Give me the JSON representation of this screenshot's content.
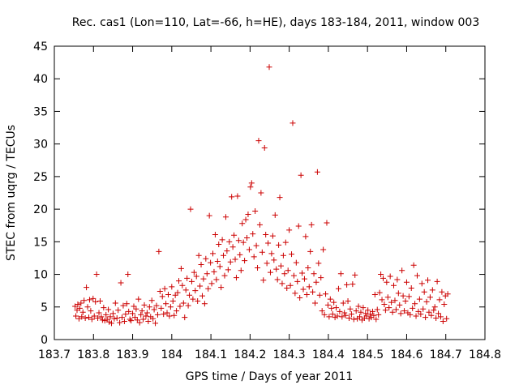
{
  "chart_data": {
    "type": "scatter",
    "title": "Rec. cas1 (Lon=110, Lat=-66, h=HE), days 183-184, 2011, window 003",
    "xlabel": "GPS time / Days of year 2011",
    "ylabel": "STEC from uqrg / TECUs",
    "xlim": [
      183.7,
      184.8
    ],
    "ylim": [
      0,
      45
    ],
    "x_ticks": [
      183.7,
      183.8,
      183.9,
      184.0,
      184.1,
      184.2,
      184.3,
      184.4,
      184.5,
      184.6,
      184.7,
      184.8
    ],
    "x_tick_labels": [
      "183.7",
      "183.8",
      "183.9",
      "184",
      "184.1",
      "184.2",
      "184.3",
      "184.4",
      "184.5",
      "184.6",
      "184.7",
      "184.8"
    ],
    "y_ticks": [
      0,
      5,
      10,
      15,
      20,
      25,
      30,
      35,
      40,
      45
    ],
    "y_tick_labels": [
      "0",
      "5",
      "10",
      "15",
      "20",
      "25",
      "30",
      "35",
      "40",
      "45"
    ],
    "grid": false,
    "marker": "+",
    "color": "#cc0000",
    "points": [
      [
        183.753,
        5.1
      ],
      [
        183.755,
        3.6
      ],
      [
        183.758,
        4.5
      ],
      [
        183.76,
        5.4
      ],
      [
        183.763,
        3.2
      ],
      [
        183.765,
        4.8
      ],
      [
        183.768,
        5.6
      ],
      [
        183.77,
        3.5
      ],
      [
        183.773,
        4.2
      ],
      [
        183.776,
        6.0
      ],
      [
        183.779,
        3.3
      ],
      [
        183.782,
        8.0
      ],
      [
        183.785,
        5.0
      ],
      [
        183.788,
        3.4
      ],
      [
        183.79,
        6.1
      ],
      [
        183.793,
        4.4
      ],
      [
        183.796,
        3.1
      ],
      [
        183.799,
        6.3
      ],
      [
        183.802,
        3.6
      ],
      [
        183.805,
        5.8
      ],
      [
        183.808,
        10.0
      ],
      [
        183.811,
        3.3
      ],
      [
        183.814,
        4.1
      ],
      [
        183.817,
        5.9
      ],
      [
        183.82,
        3.5
      ],
      [
        183.823,
        3.0
      ],
      [
        183.826,
        4.9
      ],
      [
        183.829,
        2.9
      ],
      [
        183.832,
        3.8
      ],
      [
        183.835,
        3.1
      ],
      [
        183.838,
        4.6
      ],
      [
        183.84,
        2.7
      ],
      [
        183.843,
        3.5
      ],
      [
        183.846,
        2.5
      ],
      [
        183.85,
        4.0
      ],
      [
        183.853,
        3.2
      ],
      [
        183.856,
        5.6
      ],
      [
        183.86,
        3.3
      ],
      [
        183.863,
        4.5
      ],
      [
        183.867,
        2.6
      ],
      [
        183.87,
        8.7
      ],
      [
        183.873,
        3.4
      ],
      [
        183.876,
        5.2
      ],
      [
        183.879,
        2.8
      ],
      [
        183.882,
        3.9
      ],
      [
        183.885,
        5.5
      ],
      [
        183.888,
        10.0
      ],
      [
        183.89,
        4.3
      ],
      [
        183.893,
        3.1
      ],
      [
        183.896,
        2.9
      ],
      [
        183.9,
        4.0
      ],
      [
        183.903,
        5.1
      ],
      [
        183.906,
        3.4
      ],
      [
        183.909,
        4.7
      ],
      [
        183.912,
        3.0
      ],
      [
        183.915,
        6.2
      ],
      [
        183.918,
        2.6
      ],
      [
        183.921,
        3.8
      ],
      [
        183.924,
        4.4
      ],
      [
        183.927,
        3.1
      ],
      [
        183.93,
        5.3
      ],
      [
        183.934,
        3.6
      ],
      [
        183.937,
        4.1
      ],
      [
        183.94,
        2.8
      ],
      [
        183.943,
        5.0
      ],
      [
        183.946,
        3.5
      ],
      [
        183.949,
        6.0
      ],
      [
        183.952,
        3.2
      ],
      [
        183.955,
        4.6
      ],
      [
        183.958,
        2.5
      ],
      [
        183.961,
        5.2
      ],
      [
        183.964,
        3.8
      ],
      [
        183.967,
        13.5
      ],
      [
        183.97,
        7.4
      ],
      [
        183.973,
        4.8
      ],
      [
        183.976,
        6.6
      ],
      [
        183.979,
        3.9
      ],
      [
        183.982,
        7.8
      ],
      [
        183.985,
        5.5
      ],
      [
        183.988,
        4.1
      ],
      [
        183.991,
        6.9
      ],
      [
        183.994,
        3.6
      ],
      [
        183.997,
        5.0
      ],
      [
        184.0,
        8.1
      ],
      [
        184.003,
        5.9
      ],
      [
        184.006,
        3.7
      ],
      [
        184.009,
        6.8
      ],
      [
        184.012,
        4.4
      ],
      [
        184.015,
        7.2
      ],
      [
        184.018,
        9.0
      ],
      [
        184.021,
        5.1
      ],
      [
        184.024,
        10.9
      ],
      [
        184.027,
        8.3
      ],
      [
        184.03,
        5.6
      ],
      [
        184.033,
        3.4
      ],
      [
        184.036,
        7.6
      ],
      [
        184.039,
        9.4
      ],
      [
        184.042,
        5.2
      ],
      [
        184.045,
        6.8
      ],
      [
        184.048,
        20.0
      ],
      [
        184.051,
        8.9
      ],
      [
        184.054,
        6.2
      ],
      [
        184.057,
        10.3
      ],
      [
        184.06,
        7.5
      ],
      [
        184.063,
        9.7
      ],
      [
        184.066,
        5.9
      ],
      [
        184.069,
        12.9
      ],
      [
        184.072,
        8.2
      ],
      [
        184.075,
        11.5
      ],
      [
        184.078,
        6.7
      ],
      [
        184.081,
        9.3
      ],
      [
        184.084,
        5.5
      ],
      [
        184.087,
        12.4
      ],
      [
        184.09,
        10.1
      ],
      [
        184.093,
        7.8
      ],
      [
        184.096,
        19.0
      ],
      [
        184.099,
        11.8
      ],
      [
        184.102,
        8.6
      ],
      [
        184.105,
        13.2
      ],
      [
        184.108,
        10.4
      ],
      [
        184.111,
        16.1
      ],
      [
        184.114,
        9.2
      ],
      [
        184.117,
        12.0
      ],
      [
        184.12,
        14.6
      ],
      [
        184.123,
        11.2
      ],
      [
        184.126,
        8.0
      ],
      [
        184.129,
        15.3
      ],
      [
        184.132,
        12.9
      ],
      [
        184.135,
        9.8
      ],
      [
        184.138,
        18.8
      ],
      [
        184.141,
        13.6
      ],
      [
        184.144,
        10.7
      ],
      [
        184.147,
        15.0
      ],
      [
        184.15,
        11.9
      ],
      [
        184.153,
        21.9
      ],
      [
        184.156,
        14.2
      ],
      [
        184.159,
        16.0
      ],
      [
        184.162,
        12.3
      ],
      [
        184.165,
        9.5
      ],
      [
        184.168,
        22.0
      ],
      [
        184.171,
        15.2
      ],
      [
        184.174,
        13.0
      ],
      [
        184.177,
        10.6
      ],
      [
        184.18,
        17.8
      ],
      [
        184.183,
        14.9
      ],
      [
        184.186,
        12.1
      ],
      [
        184.189,
        18.4
      ],
      [
        184.192,
        15.6
      ],
      [
        184.195,
        19.2
      ],
      [
        184.198,
        13.8
      ],
      [
        184.201,
        23.4
      ],
      [
        184.204,
        24.0
      ],
      [
        184.207,
        16.2
      ],
      [
        184.21,
        12.7
      ],
      [
        184.213,
        19.7
      ],
      [
        184.216,
        14.4
      ],
      [
        184.219,
        11.0
      ],
      [
        184.222,
        30.5
      ],
      [
        184.225,
        17.6
      ],
      [
        184.228,
        22.5
      ],
      [
        184.231,
        13.4
      ],
      [
        184.234,
        9.1
      ],
      [
        184.237,
        29.4
      ],
      [
        184.24,
        16.1
      ],
      [
        184.243,
        11.7
      ],
      [
        184.246,
        14.8
      ],
      [
        184.249,
        41.8
      ],
      [
        184.252,
        10.3
      ],
      [
        184.255,
        13.2
      ],
      [
        184.258,
        15.9
      ],
      [
        184.261,
        12.2
      ],
      [
        184.264,
        19.1
      ],
      [
        184.267,
        10.8
      ],
      [
        184.27,
        9.2
      ],
      [
        184.273,
        14.5
      ],
      [
        184.276,
        21.8
      ],
      [
        184.279,
        11.3
      ],
      [
        184.282,
        8.6
      ],
      [
        184.285,
        12.9
      ],
      [
        184.288,
        10.1
      ],
      [
        184.291,
        14.9
      ],
      [
        184.294,
        7.9
      ],
      [
        184.297,
        10.6
      ],
      [
        184.3,
        16.8
      ],
      [
        184.303,
        8.3
      ],
      [
        184.306,
        13.1
      ],
      [
        184.309,
        33.2
      ],
      [
        184.312,
        9.8
      ],
      [
        184.315,
        7.1
      ],
      [
        184.318,
        11.8
      ],
      [
        184.321,
        8.9
      ],
      [
        184.324,
        17.4
      ],
      [
        184.327,
        6.4
      ],
      [
        184.33,
        25.2
      ],
      [
        184.333,
        10.2
      ],
      [
        184.336,
        7.7
      ],
      [
        184.339,
        9.3
      ],
      [
        184.342,
        15.8
      ],
      [
        184.345,
        6.9
      ],
      [
        184.348,
        11.0
      ],
      [
        184.351,
        8.1
      ],
      [
        184.354,
        13.5
      ],
      [
        184.357,
        17.6
      ],
      [
        184.36,
        7.3
      ],
      [
        184.363,
        10.1
      ],
      [
        184.366,
        5.6
      ],
      [
        184.369,
        8.8
      ],
      [
        184.372,
        25.7
      ],
      [
        184.375,
        11.7
      ],
      [
        184.378,
        6.8
      ],
      [
        184.381,
        9.5
      ],
      [
        184.384,
        4.4
      ],
      [
        184.387,
        13.8
      ],
      [
        184.39,
        3.8
      ],
      [
        184.393,
        7.0
      ],
      [
        184.396,
        17.9
      ],
      [
        184.399,
        5.3
      ],
      [
        184.402,
        3.5
      ],
      [
        184.405,
        6.2
      ],
      [
        184.408,
        4.8
      ],
      [
        184.411,
        3.9
      ],
      [
        184.414,
        5.7
      ],
      [
        184.417,
        3.4
      ],
      [
        184.42,
        4.9
      ],
      [
        184.423,
        3.6
      ],
      [
        184.426,
        7.8
      ],
      [
        184.429,
        4.3
      ],
      [
        184.432,
        10.1
      ],
      [
        184.435,
        3.5
      ],
      [
        184.438,
        5.6
      ],
      [
        184.441,
        4.1
      ],
      [
        184.444,
        3.7
      ],
      [
        184.447,
        8.4
      ],
      [
        184.45,
        5.9
      ],
      [
        184.453,
        3.3
      ],
      [
        184.456,
        4.7
      ],
      [
        184.459,
        3.9
      ],
      [
        184.462,
        8.5
      ],
      [
        184.465,
        3.1
      ],
      [
        184.468,
        9.9
      ],
      [
        184.471,
        4.4
      ],
      [
        184.474,
        3.2
      ],
      [
        184.477,
        5.1
      ],
      [
        184.48,
        3.5
      ],
      [
        184.483,
        4.2
      ],
      [
        184.486,
        3.0
      ],
      [
        184.489,
        4.9
      ],
      [
        184.492,
        3.3
      ],
      [
        184.495,
        4.0
      ],
      [
        184.498,
        3.6
      ],
      [
        184.501,
        4.5
      ],
      [
        184.504,
        3.2
      ],
      [
        184.507,
        3.9
      ],
      [
        184.51,
        3.4
      ],
      [
        184.513,
        4.3
      ],
      [
        184.516,
        3.7
      ],
      [
        184.519,
        6.9
      ],
      [
        184.522,
        3.1
      ],
      [
        184.525,
        4.6
      ],
      [
        184.528,
        3.8
      ],
      [
        184.531,
        7.2
      ],
      [
        184.534,
        10.0
      ],
      [
        184.537,
        6.1
      ],
      [
        184.54,
        9.4
      ],
      [
        184.543,
        5.4
      ],
      [
        184.546,
        4.5
      ],
      [
        184.549,
        8.8
      ],
      [
        184.552,
        6.5
      ],
      [
        184.555,
        4.9
      ],
      [
        184.558,
        9.7
      ],
      [
        184.561,
        5.7
      ],
      [
        184.564,
        4.2
      ],
      [
        184.567,
        8.3
      ],
      [
        184.57,
        6.0
      ],
      [
        184.573,
        4.6
      ],
      [
        184.576,
        9.2
      ],
      [
        184.579,
        7.1
      ],
      [
        184.582,
        5.3
      ],
      [
        184.585,
        4.0
      ],
      [
        184.588,
        10.6
      ],
      [
        184.591,
        6.7
      ],
      [
        184.594,
        4.4
      ],
      [
        184.597,
        5.9
      ],
      [
        184.6,
        8.8
      ],
      [
        184.603,
        4.1
      ],
      [
        184.606,
        6.6
      ],
      [
        184.609,
        3.8
      ],
      [
        184.612,
        7.9
      ],
      [
        184.615,
        4.8
      ],
      [
        184.618,
        11.4
      ],
      [
        184.621,
        5.5
      ],
      [
        184.624,
        3.6
      ],
      [
        184.627,
        9.8
      ],
      [
        184.63,
        4.3
      ],
      [
        184.633,
        6.2
      ],
      [
        184.636,
        3.9
      ],
      [
        184.639,
        8.6
      ],
      [
        184.642,
        4.7
      ],
      [
        184.645,
        7.3
      ],
      [
        184.648,
        3.4
      ],
      [
        184.651,
        5.8
      ],
      [
        184.654,
        9.1
      ],
      [
        184.657,
        4.2
      ],
      [
        184.66,
        6.5
      ],
      [
        184.663,
        3.7
      ],
      [
        184.666,
        7.6
      ],
      [
        184.669,
        4.5
      ],
      [
        184.672,
        5.0
      ],
      [
        184.675,
        3.3
      ],
      [
        184.678,
        8.9
      ],
      [
        184.681,
        4.0
      ],
      [
        184.684,
        6.1
      ],
      [
        184.687,
        3.5
      ],
      [
        184.69,
        7.3
      ],
      [
        184.693,
        2.8
      ],
      [
        184.696,
        5.4
      ],
      [
        184.699,
        6.7
      ],
      [
        184.702,
        3.2
      ],
      [
        184.705,
        7.0
      ]
    ]
  }
}
